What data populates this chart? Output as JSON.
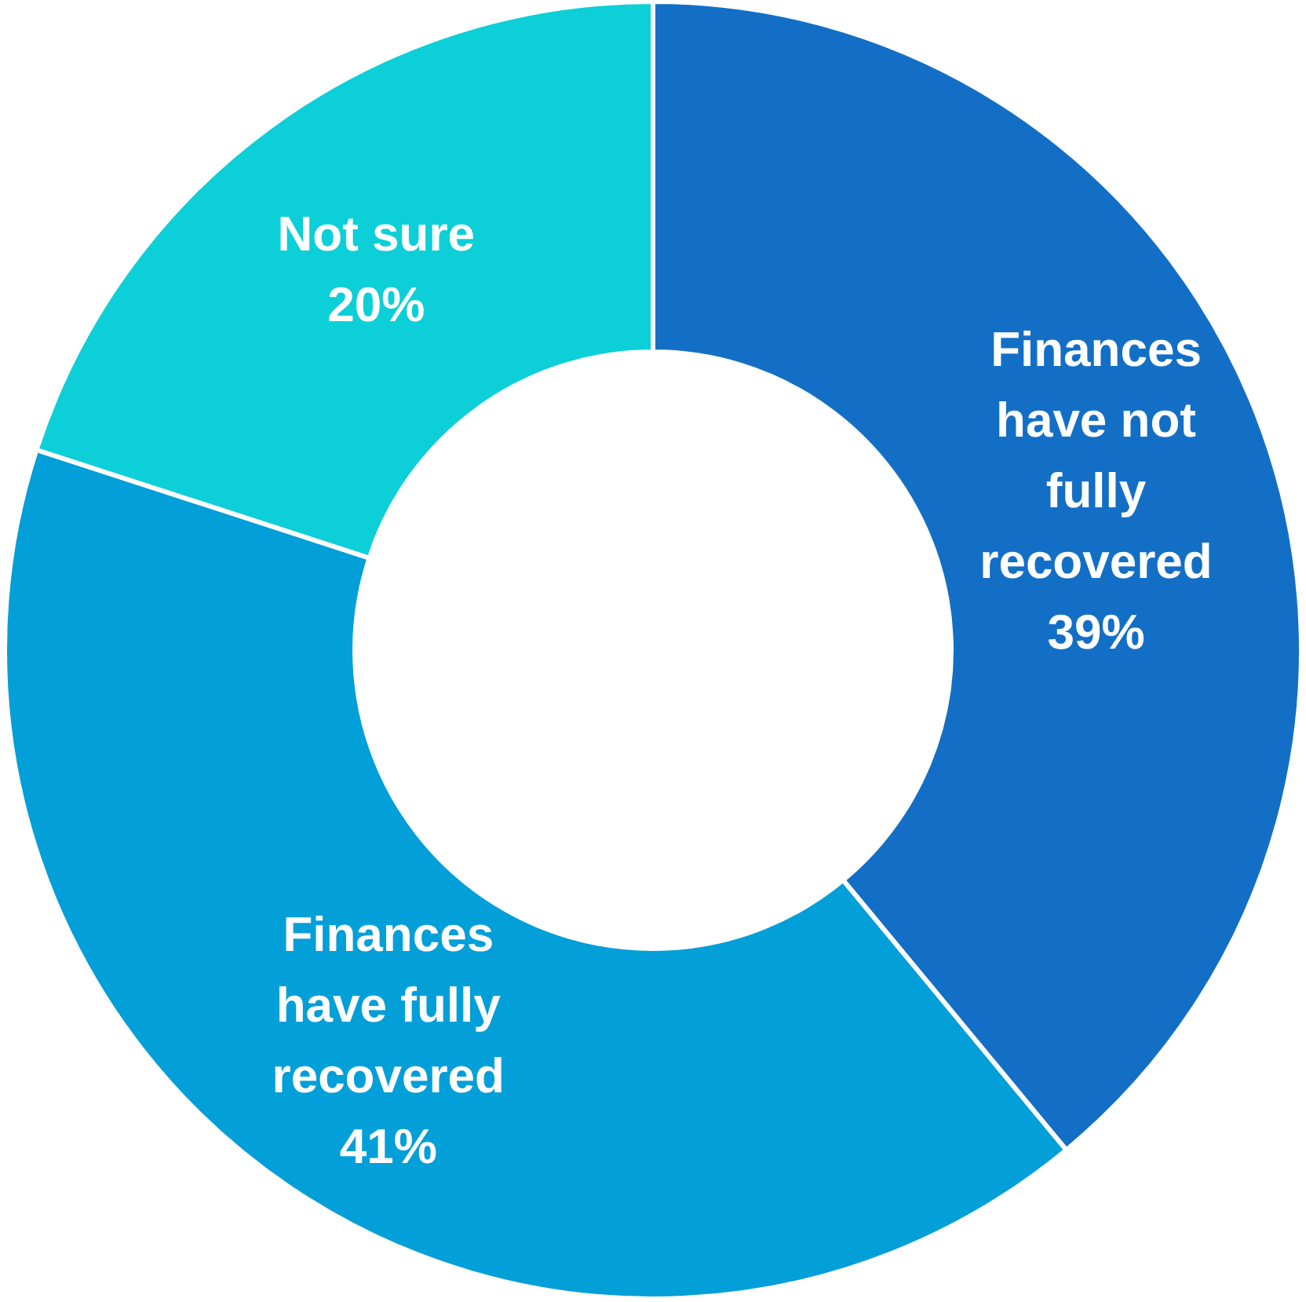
{
  "chart_data": {
    "type": "donut",
    "categories": [
      "Finances have not fully recovered",
      "Finances have fully recovered",
      "Not sure"
    ],
    "values": [
      39,
      41,
      20
    ],
    "colors": [
      "#136fc6",
      "#029fd8",
      "#0ccfd8"
    ],
    "value_labels": [
      "39%",
      "41%",
      "20%"
    ]
  }
}
